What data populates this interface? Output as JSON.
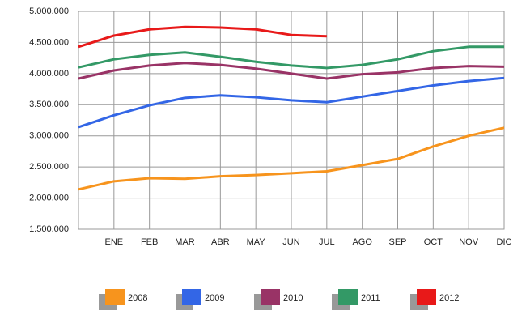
{
  "chart_data": {
    "type": "line",
    "categories": [
      null,
      "ENE",
      "FEB",
      "MAR",
      "ABR",
      "MAY",
      "JUN",
      "JUL",
      "AGO",
      "SEP",
      "OCT",
      "NOV",
      "DIC"
    ],
    "ylim": [
      1500000,
      5000000
    ],
    "yticks": [
      {
        "value": 1500000,
        "label": "1.500.000"
      },
      {
        "value": 2000000,
        "label": "2.000.000"
      },
      {
        "value": 2500000,
        "label": "2.500.000"
      },
      {
        "value": 3000000,
        "label": "3.000.000"
      },
      {
        "value": 3500000,
        "label": "3.500.000"
      },
      {
        "value": 4000000,
        "label": "4.000.000"
      },
      {
        "value": 4500000,
        "label": "4.500.000"
      },
      {
        "value": 5000000,
        "label": "5.000.000"
      }
    ],
    "grid": true,
    "legend": "bottom",
    "series": [
      {
        "name": "2008",
        "color": "#f7941d",
        "values": [
          2140000,
          2270000,
          2320000,
          2310000,
          2350000,
          2370000,
          2400000,
          2430000,
          2530000,
          2630000,
          2830000,
          3000000,
          3130000
        ]
      },
      {
        "name": "2009",
        "color": "#3366e6",
        "values": [
          3140000,
          3330000,
          3490000,
          3610000,
          3650000,
          3620000,
          3570000,
          3540000,
          3630000,
          3720000,
          3810000,
          3880000,
          3930000
        ]
      },
      {
        "name": "2010",
        "color": "#993366",
        "values": [
          3920000,
          4050000,
          4130000,
          4170000,
          4140000,
          4080000,
          4000000,
          3920000,
          3990000,
          4020000,
          4090000,
          4120000,
          4110000
        ]
      },
      {
        "name": "2011",
        "color": "#339966",
        "values": [
          4100000,
          4230000,
          4300000,
          4340000,
          4270000,
          4190000,
          4130000,
          4090000,
          4140000,
          4230000,
          4360000,
          4430000,
          4430000
        ]
      },
      {
        "name": "2012",
        "color": "#e81919",
        "values": [
          4430000,
          4610000,
          4710000,
          4750000,
          4740000,
          4710000,
          4620000,
          4600000,
          null,
          null,
          null,
          null,
          null
        ]
      }
    ]
  }
}
